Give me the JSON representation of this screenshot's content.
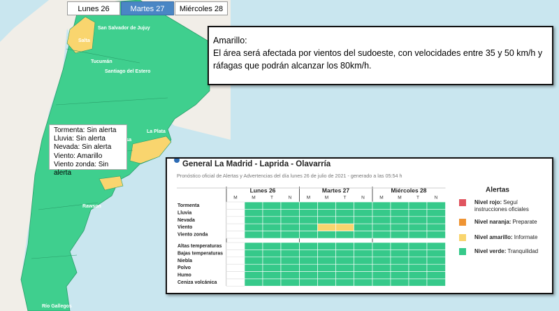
{
  "tabs": {
    "items": [
      "Lunes 26",
      "Martes 27",
      "Miércoles 28"
    ],
    "active": 1
  },
  "map": {
    "labels": [
      {
        "text": "Salta"
      },
      {
        "text": "San Salvador de Jujuy"
      },
      {
        "text": "Tucumán"
      },
      {
        "text": "Santiago del Estero"
      },
      {
        "text": "La Plata"
      },
      {
        "text": "Santa Rosa"
      },
      {
        "text": "Rawson"
      },
      {
        "text": "Río Gallegos"
      }
    ]
  },
  "popup": {
    "title": "Amarillo:",
    "text": "El área será afectada por vientos del sudoeste, con velocidades entre 35 y 50 km/h y ráfagas que podrán alcanzar los 80km/h."
  },
  "tooltip": {
    "lines": [
      "Tormenta: Sin alerta",
      "Lluvia: Sin alerta",
      "Nevada: Sin alerta",
      "Viento: Amarillo",
      "Viento zonda: Sin alerta"
    ]
  },
  "panel": {
    "title": "General La Madrid - Laprida - Olavarría",
    "subtitle": "Pronóstico oficial de Alertas y Advertencias del día lunes 26 de julio de 2021 - generado a las 05:54 h",
    "days": [
      {
        "name": "Lunes 26",
        "periods": [
          "M",
          "M",
          "T",
          "N"
        ]
      },
      {
        "name": "Martes 27",
        "periods": [
          "M",
          "M",
          "T",
          "N"
        ]
      },
      {
        "name": "Miércoles 28",
        "periods": [
          "M",
          "M",
          "T",
          "N"
        ]
      }
    ],
    "groups": [
      {
        "rows": [
          {
            "label": "Tormenta",
            "cells": [
              null,
              3,
              3,
              3,
              3,
              3,
              3,
              3,
              3,
              3,
              3,
              3
            ]
          },
          {
            "label": "Lluvia",
            "cells": [
              null,
              3,
              3,
              3,
              3,
              3,
              3,
              3,
              3,
              3,
              3,
              3
            ]
          },
          {
            "label": "Nevada",
            "cells": [
              null,
              3,
              3,
              3,
              3,
              3,
              3,
              3,
              3,
              3,
              3,
              3
            ]
          },
          {
            "label": "Viento",
            "cells": [
              null,
              3,
              3,
              3,
              3,
              2,
              2,
              3,
              3,
              3,
              3,
              3
            ]
          },
          {
            "label": "Viento zonda",
            "cells": [
              null,
              3,
              3,
              3,
              3,
              3,
              3,
              3,
              3,
              3,
              3,
              3
            ]
          }
        ]
      },
      {
        "rows": [
          {
            "label": "Altas temperaturas",
            "cells": [
              null,
              3,
              3,
              3,
              3,
              3,
              3,
              3,
              3,
              3,
              3,
              3
            ]
          },
          {
            "label": "Bajas temperaturas",
            "cells": [
              null,
              3,
              3,
              3,
              3,
              3,
              3,
              3,
              3,
              3,
              3,
              3
            ]
          },
          {
            "label": "Niebla",
            "cells": [
              null,
              3,
              3,
              3,
              3,
              3,
              3,
              3,
              3,
              3,
              3,
              3
            ]
          },
          {
            "label": "Polvo",
            "cells": [
              null,
              3,
              3,
              3,
              3,
              3,
              3,
              3,
              3,
              3,
              3,
              3
            ]
          },
          {
            "label": "Humo",
            "cells": [
              null,
              3,
              3,
              3,
              3,
              3,
              3,
              3,
              3,
              3,
              3,
              3
            ]
          },
          {
            "label": "Ceniza volcánica",
            "cells": [
              null,
              3,
              3,
              3,
              3,
              3,
              3,
              3,
              3,
              3,
              3,
              3
            ]
          }
        ]
      }
    ],
    "legend": {
      "title": "Alertas",
      "items": [
        {
          "label": "Nivel rojo:",
          "desc": "Seguí instrucciones oficiales",
          "color": "#e0555f"
        },
        {
          "label": "Nivel naranja:",
          "desc": "Preparate",
          "color": "#ef9434"
        },
        {
          "label": "Nivel amarillo:",
          "desc": "Informate",
          "color": "#f9d56e"
        },
        {
          "label": "Nivel verde:",
          "desc": "Tranquilidad",
          "color": "#36c98a"
        }
      ]
    }
  }
}
